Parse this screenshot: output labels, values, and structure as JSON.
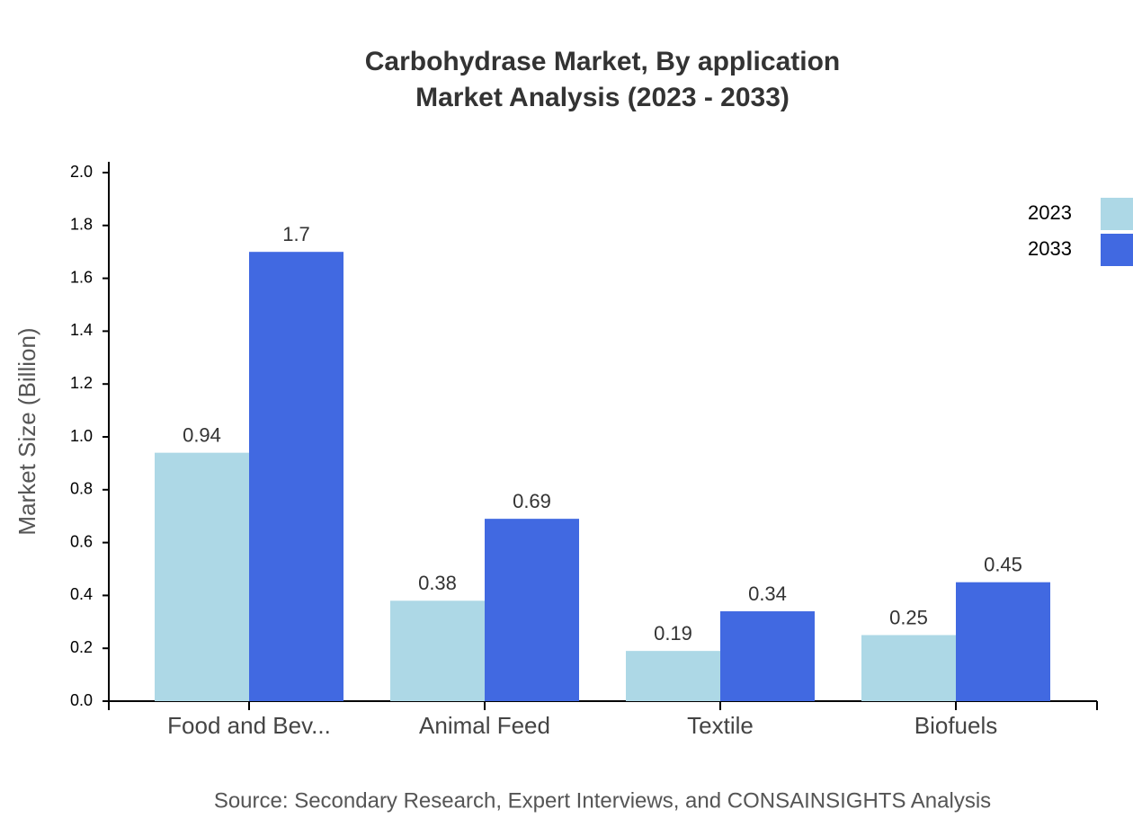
{
  "chart_data": {
    "type": "bar",
    "title": "Carbohydrase Market, By application",
    "subtitle": "Market Analysis (2023 - 2033)",
    "y_label": "Market Size (Billion)",
    "source": "Source: Secondary Research, Expert Interviews, and CONSAINSIGHTS Analysis",
    "categories": [
      "Food and Bev...",
      "Animal Feed",
      "Textile",
      "Biofuels"
    ],
    "series": [
      {
        "name": "2023",
        "color": "#add8e6",
        "values": [
          0.94,
          0.38,
          0.19,
          0.25
        ]
      },
      {
        "name": "2033",
        "color": "#4169e1",
        "values": [
          1.7,
          0.69,
          0.34,
          0.45
        ]
      }
    ],
    "ylim": [
      0,
      2
    ],
    "yticks": [
      {
        "value": 0,
        "label": "0.0"
      },
      0.2,
      0.4,
      0.6,
      0.8,
      {
        "value": 1,
        "label": "1.0"
      },
      1.2,
      1.4,
      1.6,
      1.8,
      {
        "value": 2,
        "label": "2.0"
      }
    ],
    "grid": false,
    "legend": "top-right"
  }
}
